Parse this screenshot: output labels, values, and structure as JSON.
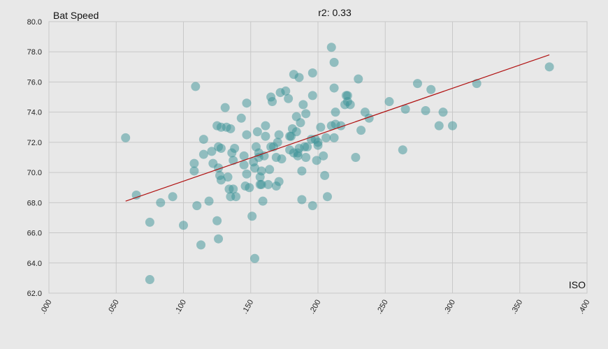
{
  "chart_data": {
    "type": "scatter",
    "title": "r2: 0.33",
    "xlabel": "ISO",
    "ylabel": "Bat Speed",
    "xlim": [
      0.0,
      0.4
    ],
    "ylim": [
      62.0,
      80.0
    ],
    "x_ticks": [
      ".000",
      ".050",
      ".100",
      ".150",
      ".200",
      ".250",
      ".300",
      ".350",
      ".400"
    ],
    "y_ticks": [
      "62.0",
      "64.0",
      "66.0",
      "68.0",
      "70.0",
      "72.0",
      "74.0",
      "76.0",
      "78.0",
      "80.0"
    ],
    "grid": true,
    "point_color": "#3a9196",
    "trendline_color": "#b01010",
    "trendline": {
      "x": [
        0.057,
        0.372
      ],
      "y": [
        68.1,
        77.8
      ]
    },
    "points": [
      {
        "x": 0.057,
        "y": 72.3
      },
      {
        "x": 0.065,
        "y": 68.5
      },
      {
        "x": 0.075,
        "y": 66.7
      },
      {
        "x": 0.075,
        "y": 62.9
      },
      {
        "x": 0.083,
        "y": 68.0
      },
      {
        "x": 0.092,
        "y": 68.4
      },
      {
        "x": 0.1,
        "y": 66.5
      },
      {
        "x": 0.108,
        "y": 70.6
      },
      {
        "x": 0.108,
        "y": 70.1
      },
      {
        "x": 0.109,
        "y": 75.7
      },
      {
        "x": 0.11,
        "y": 67.8
      },
      {
        "x": 0.113,
        "y": 65.2
      },
      {
        "x": 0.115,
        "y": 72.2
      },
      {
        "x": 0.115,
        "y": 71.2
      },
      {
        "x": 0.119,
        "y": 68.1
      },
      {
        "x": 0.121,
        "y": 71.4
      },
      {
        "x": 0.122,
        "y": 70.6
      },
      {
        "x": 0.125,
        "y": 73.1
      },
      {
        "x": 0.125,
        "y": 66.8
      },
      {
        "x": 0.126,
        "y": 65.6
      },
      {
        "x": 0.126,
        "y": 70.3
      },
      {
        "x": 0.126,
        "y": 71.7
      },
      {
        "x": 0.127,
        "y": 69.8
      },
      {
        "x": 0.128,
        "y": 73.0
      },
      {
        "x": 0.128,
        "y": 69.5
      },
      {
        "x": 0.128,
        "y": 71.6
      },
      {
        "x": 0.131,
        "y": 74.3
      },
      {
        "x": 0.132,
        "y": 73.0
      },
      {
        "x": 0.133,
        "y": 69.7
      },
      {
        "x": 0.134,
        "y": 68.9
      },
      {
        "x": 0.135,
        "y": 68.4
      },
      {
        "x": 0.135,
        "y": 72.9
      },
      {
        "x": 0.136,
        "y": 71.3
      },
      {
        "x": 0.137,
        "y": 70.8
      },
      {
        "x": 0.137,
        "y": 68.9
      },
      {
        "x": 0.138,
        "y": 71.6
      },
      {
        "x": 0.139,
        "y": 68.4
      },
      {
        "x": 0.143,
        "y": 73.6
      },
      {
        "x": 0.145,
        "y": 70.5
      },
      {
        "x": 0.145,
        "y": 71.1
      },
      {
        "x": 0.146,
        "y": 69.1
      },
      {
        "x": 0.147,
        "y": 74.6
      },
      {
        "x": 0.147,
        "y": 72.5
      },
      {
        "x": 0.147,
        "y": 69.9
      },
      {
        "x": 0.149,
        "y": 69.0
      },
      {
        "x": 0.151,
        "y": 67.1
      },
      {
        "x": 0.152,
        "y": 70.7
      },
      {
        "x": 0.153,
        "y": 70.3
      },
      {
        "x": 0.153,
        "y": 64.3
      },
      {
        "x": 0.154,
        "y": 71.7
      },
      {
        "x": 0.155,
        "y": 72.7
      },
      {
        "x": 0.156,
        "y": 71.3
      },
      {
        "x": 0.156,
        "y": 71.0
      },
      {
        "x": 0.157,
        "y": 69.7
      },
      {
        "x": 0.157,
        "y": 69.2
      },
      {
        "x": 0.158,
        "y": 69.2
      },
      {
        "x": 0.158,
        "y": 70.1
      },
      {
        "x": 0.159,
        "y": 68.1
      },
      {
        "x": 0.16,
        "y": 71.1
      },
      {
        "x": 0.161,
        "y": 72.4
      },
      {
        "x": 0.161,
        "y": 73.1
      },
      {
        "x": 0.163,
        "y": 69.2
      },
      {
        "x": 0.164,
        "y": 70.2
      },
      {
        "x": 0.165,
        "y": 75.0
      },
      {
        "x": 0.165,
        "y": 71.7
      },
      {
        "x": 0.166,
        "y": 74.7
      },
      {
        "x": 0.167,
        "y": 71.7
      },
      {
        "x": 0.169,
        "y": 69.1
      },
      {
        "x": 0.169,
        "y": 71.0
      },
      {
        "x": 0.17,
        "y": 72.0
      },
      {
        "x": 0.171,
        "y": 72.5
      },
      {
        "x": 0.171,
        "y": 69.4
      },
      {
        "x": 0.172,
        "y": 75.3
      },
      {
        "x": 0.173,
        "y": 70.9
      },
      {
        "x": 0.176,
        "y": 75.4
      },
      {
        "x": 0.178,
        "y": 74.9
      },
      {
        "x": 0.179,
        "y": 72.4
      },
      {
        "x": 0.179,
        "y": 71.5
      },
      {
        "x": 0.18,
        "y": 72.4
      },
      {
        "x": 0.181,
        "y": 72.9
      },
      {
        "x": 0.182,
        "y": 76.5
      },
      {
        "x": 0.182,
        "y": 71.3
      },
      {
        "x": 0.184,
        "y": 73.7
      },
      {
        "x": 0.184,
        "y": 72.7
      },
      {
        "x": 0.185,
        "y": 71.1
      },
      {
        "x": 0.185,
        "y": 71.3
      },
      {
        "x": 0.186,
        "y": 76.3
      },
      {
        "x": 0.186,
        "y": 71.6
      },
      {
        "x": 0.187,
        "y": 73.3
      },
      {
        "x": 0.188,
        "y": 70.1
      },
      {
        "x": 0.188,
        "y": 68.2
      },
      {
        "x": 0.189,
        "y": 74.5
      },
      {
        "x": 0.19,
        "y": 71.7
      },
      {
        "x": 0.191,
        "y": 73.9
      },
      {
        "x": 0.191,
        "y": 71.0
      },
      {
        "x": 0.192,
        "y": 71.7
      },
      {
        "x": 0.195,
        "y": 72.2
      },
      {
        "x": 0.196,
        "y": 67.8
      },
      {
        "x": 0.196,
        "y": 76.6
      },
      {
        "x": 0.196,
        "y": 75.1
      },
      {
        "x": 0.198,
        "y": 72.2
      },
      {
        "x": 0.199,
        "y": 70.8
      },
      {
        "x": 0.2,
        "y": 71.8
      },
      {
        "x": 0.2,
        "y": 72.0
      },
      {
        "x": 0.202,
        "y": 73.0
      },
      {
        "x": 0.204,
        "y": 71.1
      },
      {
        "x": 0.205,
        "y": 69.8
      },
      {
        "x": 0.206,
        "y": 72.3
      },
      {
        "x": 0.207,
        "y": 68.4
      },
      {
        "x": 0.21,
        "y": 78.3
      },
      {
        "x": 0.21,
        "y": 73.1
      },
      {
        "x": 0.212,
        "y": 77.3
      },
      {
        "x": 0.212,
        "y": 75.6
      },
      {
        "x": 0.212,
        "y": 72.3
      },
      {
        "x": 0.213,
        "y": 74.0
      },
      {
        "x": 0.213,
        "y": 73.2
      },
      {
        "x": 0.217,
        "y": 73.1
      },
      {
        "x": 0.22,
        "y": 74.5
      },
      {
        "x": 0.221,
        "y": 75.1
      },
      {
        "x": 0.222,
        "y": 75.1
      },
      {
        "x": 0.222,
        "y": 74.7
      },
      {
        "x": 0.224,
        "y": 74.5
      },
      {
        "x": 0.228,
        "y": 71.0
      },
      {
        "x": 0.23,
        "y": 76.2
      },
      {
        "x": 0.232,
        "y": 72.8
      },
      {
        "x": 0.235,
        "y": 74.0
      },
      {
        "x": 0.238,
        "y": 73.6
      },
      {
        "x": 0.253,
        "y": 74.7
      },
      {
        "x": 0.263,
        "y": 71.5
      },
      {
        "x": 0.265,
        "y": 74.2
      },
      {
        "x": 0.274,
        "y": 75.9
      },
      {
        "x": 0.28,
        "y": 74.1
      },
      {
        "x": 0.284,
        "y": 75.5
      },
      {
        "x": 0.29,
        "y": 73.1
      },
      {
        "x": 0.293,
        "y": 74.0
      },
      {
        "x": 0.3,
        "y": 73.1
      },
      {
        "x": 0.318,
        "y": 75.9
      },
      {
        "x": 0.372,
        "y": 77.0
      }
    ]
  }
}
